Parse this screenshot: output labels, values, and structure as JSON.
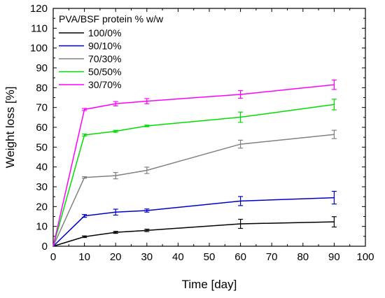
{
  "chart_data": {
    "type": "line",
    "xlabel": "Time [day]",
    "ylabel": "Weight loss [%]",
    "xlim": [
      0,
      100
    ],
    "ylim": [
      0,
      120
    ],
    "xticks": [
      0,
      10,
      20,
      30,
      40,
      50,
      60,
      70,
      80,
      90,
      100
    ],
    "yticks": [
      0,
      10,
      20,
      30,
      40,
      50,
      60,
      70,
      80,
      90,
      100,
      110,
      120
    ],
    "grid": false,
    "legend": {
      "title": "PVA/BSF protein % w/w",
      "placement": "top-left"
    },
    "x": [
      0,
      10,
      20,
      30,
      60,
      90
    ],
    "series": [
      {
        "name": "100/0%",
        "color": "#000000",
        "values": [
          0,
          4.8,
          7.0,
          8.0,
          11.3,
          12.3
        ],
        "errors": [
          0,
          0.4,
          0.5,
          0.6,
          2.3,
          2.6
        ]
      },
      {
        "name": "90/10%",
        "color": "#0000cc",
        "values": [
          0,
          15.3,
          17.2,
          18.0,
          22.8,
          24.5
        ],
        "errors": [
          0,
          0.7,
          1.5,
          0.8,
          2.3,
          3.2
        ]
      },
      {
        "name": "70/30%",
        "color": "#808080",
        "values": [
          0,
          34.7,
          35.6,
          38.3,
          51.5,
          56.4
        ],
        "errors": [
          0,
          0.4,
          1.6,
          1.6,
          2.0,
          2.1
        ]
      },
      {
        "name": "50/50%",
        "color": "#00dd00",
        "values": [
          0,
          56.1,
          58.0,
          60.7,
          65.1,
          71.5
        ],
        "errors": [
          0,
          0.5,
          0.5,
          0.4,
          2.6,
          2.7
        ]
      },
      {
        "name": "30/70%",
        "color": "#ff00ff",
        "values": [
          0,
          69.0,
          71.9,
          73.2,
          76.6,
          81.5
        ],
        "errors": [
          0,
          0.5,
          1.1,
          1.3,
          1.9,
          2.4
        ]
      }
    ]
  }
}
